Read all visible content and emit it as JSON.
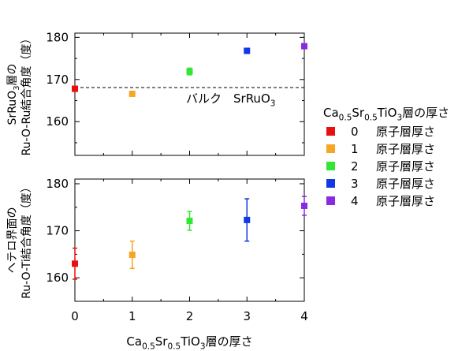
{
  "chart_data": [
    {
      "type": "scatter",
      "title": "",
      "ylabel_line1": "SrRuO3層の",
      "ylabel_line2": "Ru-O-Ru結合角度（度）",
      "ylim": [
        152,
        181
      ],
      "yticks": [
        160,
        170,
        180
      ],
      "xlim": [
        0,
        4
      ],
      "grid": false,
      "points": [
        {
          "x": 0,
          "y": 167.8,
          "err": 0.6,
          "color": "#e81010"
        },
        {
          "x": 1,
          "y": 166.6,
          "err": 0.5,
          "color": "#f5a623"
        },
        {
          "x": 2,
          "y": 171.9,
          "err": 0.8,
          "color": "#33e633"
        },
        {
          "x": 3,
          "y": 176.8,
          "err": 0.6,
          "color": "#1238e0"
        },
        {
          "x": 4,
          "y": 177.9,
          "err": 0.4,
          "color": "#8a2be2"
        }
      ],
      "reference": {
        "y": 168.1,
        "label": "バルク　SrRuO3"
      }
    },
    {
      "type": "scatter",
      "title": "",
      "ylabel_line1": "ヘテロ界面の",
      "ylabel_line2": "Ru-O-Ti結合角度（度）",
      "ylim": [
        155,
        181
      ],
      "yticks": [
        160,
        170,
        180
      ],
      "xlim": [
        0,
        4
      ],
      "xticks": [
        0,
        1,
        2,
        3,
        4
      ],
      "xlabel": "Ca0.5Sr0.5TiO3層の厚さ",
      "grid": false,
      "points": [
        {
          "x": 0,
          "y": 163.0,
          "err": 3.3,
          "color": "#e81010"
        },
        {
          "x": 1,
          "y": 164.9,
          "err": 2.9,
          "color": "#f5a623"
        },
        {
          "x": 2,
          "y": 172.1,
          "err": 2.0,
          "color": "#33e633"
        },
        {
          "x": 3,
          "y": 172.3,
          "err": 4.5,
          "color": "#1238e0"
        },
        {
          "x": 4,
          "y": 175.3,
          "err": 2.0,
          "color": "#8a2be2"
        }
      ]
    }
  ],
  "legend": {
    "title": "Ca0.5Sr0.5TiO3層の厚さ",
    "placement": "right",
    "items": [
      {
        "num": "0",
        "text": "原子層厚さ",
        "color": "#e81010"
      },
      {
        "num": "1",
        "text": "原子層厚さ",
        "color": "#f5a623"
      },
      {
        "num": "2",
        "text": "原子層厚さ",
        "color": "#33e633"
      },
      {
        "num": "3",
        "text": "原子層厚さ",
        "color": "#1238e0"
      },
      {
        "num": "4",
        "text": "原子層厚さ",
        "color": "#8a2be2"
      }
    ]
  }
}
